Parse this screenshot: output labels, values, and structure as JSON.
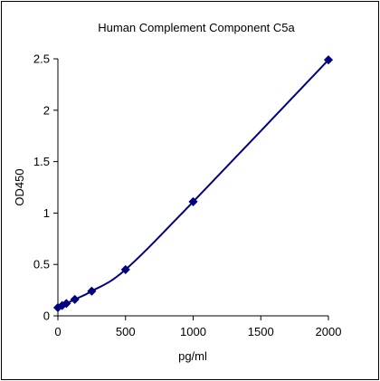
{
  "chart_data": {
    "type": "line",
    "title": "Human Complement Component C5a",
    "xlabel": "pg/ml",
    "ylabel": "OD450",
    "xlim": [
      0,
      2000
    ],
    "ylim": [
      0,
      2.5
    ],
    "x_ticks": [
      0,
      500,
      1000,
      1500,
      2000
    ],
    "y_ticks": [
      0,
      0.5,
      1,
      1.5,
      2,
      2.5
    ],
    "x_tick_labels": [
      "0",
      "500",
      "1000",
      "1500",
      "2000"
    ],
    "y_tick_labels": [
      "0",
      "0.5",
      "1",
      "1.5",
      "2",
      "2.5"
    ],
    "grid": false,
    "legend": "none",
    "series": [
      {
        "marker": "diamond",
        "color": "#000080",
        "x": [
          0,
          31.25,
          62.5,
          125,
          250,
          500,
          1000,
          2000
        ],
        "y": [
          0.08,
          0.1,
          0.12,
          0.16,
          0.24,
          0.45,
          1.11,
          2.49
        ]
      }
    ]
  }
}
